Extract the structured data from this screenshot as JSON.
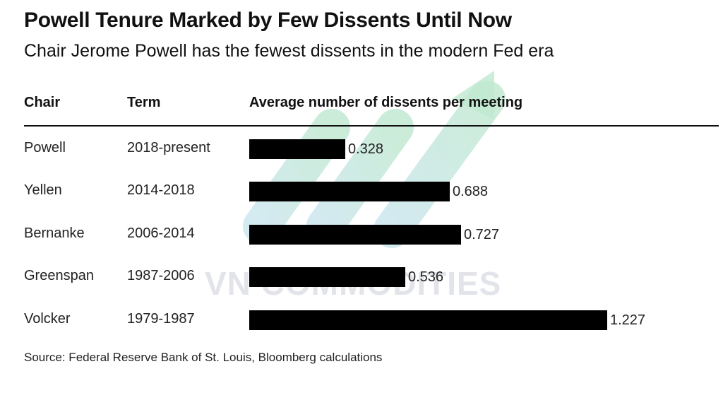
{
  "title": "Powell Tenure Marked by Few Dissents Until Now",
  "subtitle": "Chair Jerome Powell has the fewest dissents in the modern Fed era",
  "headers": {
    "chair": "Chair",
    "term": "Term",
    "avg": "Average number of dissents per meeting"
  },
  "rows": [
    {
      "chair": "Powell",
      "term": "2018-present",
      "value_label": "0.328"
    },
    {
      "chair": "Yellen",
      "term": "2014-2018",
      "value_label": "0.688"
    },
    {
      "chair": "Bernanke",
      "term": "2006-2014",
      "value_label": "0.727"
    },
    {
      "chair": "Greenspan",
      "term": "1987-2006",
      "value_label": "0.536"
    },
    {
      "chair": "Volcker",
      "term": "1979-1987",
      "value_label": "1.227"
    }
  ],
  "source": "Source: Federal Reserve Bank of St. Louis, Bloomberg calculations",
  "watermark": "VN COMMODITIES",
  "colors": {
    "bar": "#000000",
    "text": "#111111",
    "watermark_green": "#bfe8cf",
    "watermark_blue": "#c9e6ee"
  },
  "chart_data": {
    "type": "bar",
    "orientation": "horizontal",
    "categories": [
      "Powell",
      "Yellen",
      "Bernanke",
      "Greenspan",
      "Volcker"
    ],
    "values": [
      0.328,
      0.688,
      0.727,
      0.536,
      1.227
    ],
    "title": "Powell Tenure Marked by Few Dissents Until Now",
    "subtitle": "Chair Jerome Powell has the fewest dissents in the modern Fed era",
    "xlabel": "Average number of dissents per meeting",
    "ylabel": "Chair",
    "xlim": [
      0,
      1.227
    ],
    "grid": false,
    "legend": "none"
  }
}
